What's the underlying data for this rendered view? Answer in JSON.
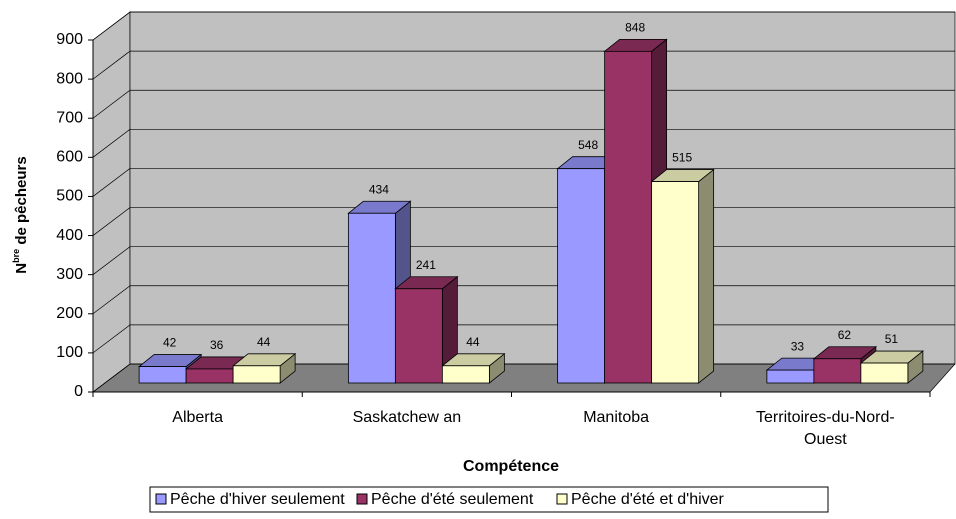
{
  "chart_data": {
    "type": "bar3d",
    "x_label": "Compétence",
    "y_label": {
      "main": "N",
      "sup": "bre",
      "rest": " de pêcheurs"
    },
    "categories": [
      "Alberta",
      "Saskatchew an",
      "Manitoba",
      "Territoires-du-Nord-Ouest"
    ],
    "series": [
      {
        "name": "Pêche d'hiver seulement",
        "color": "#9999ff",
        "values": [
          42,
          434,
          548,
          33
        ]
      },
      {
        "name": "Pêche d'été seulement",
        "color": "#993366",
        "values": [
          36,
          241,
          848,
          62
        ]
      },
      {
        "name": "Pêche d'été et d'hiver",
        "color": "#ffffcc",
        "values": [
          44,
          44,
          515,
          51
        ]
      }
    ],
    "ylim": [
      0,
      900
    ],
    "yticks": [
      0,
      100,
      200,
      300,
      400,
      500,
      600,
      700,
      800,
      900
    ],
    "grid": true,
    "legend": "bottom"
  }
}
